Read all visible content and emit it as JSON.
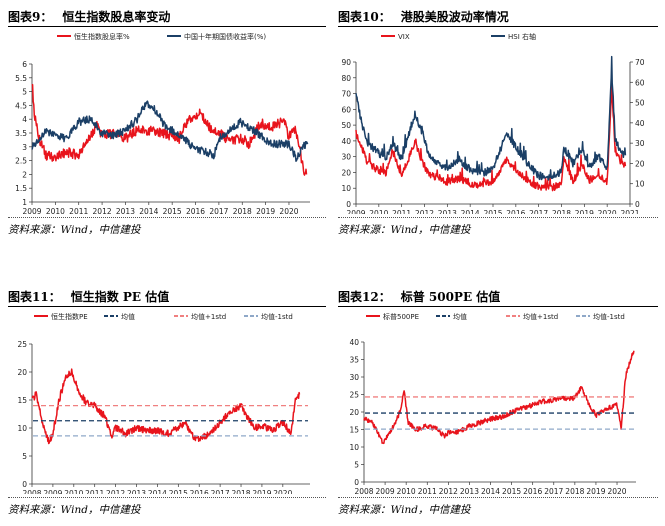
{
  "colors": {
    "red": "#e8141c",
    "navy": "#1b3f66",
    "pink": "#f08080",
    "lightblue": "#8fa8c8"
  },
  "source_text": "资料来源：Wind，中信建投",
  "panels": [
    {
      "fig_label": "图表9：",
      "title": "恒生指数股息率变动"
    },
    {
      "fig_label": "图表10：",
      "title": "港股美股波动率情况"
    },
    {
      "fig_label": "图表11：",
      "title": "恒生指数 PE 估值"
    },
    {
      "fig_label": "图表12：",
      "title": "标普 500PE 估值"
    }
  ],
  "chart_data": [
    {
      "type": "line",
      "title": "恒生指数股息率变动",
      "xlabels": [
        "2009",
        "2010",
        "2011",
        "2012",
        "2013",
        "2014",
        "2015",
        "2016",
        "2017",
        "2018",
        "2019",
        "2020"
      ],
      "xlim": [
        2009,
        2020.9
      ],
      "ylim": [
        1,
        6
      ],
      "yticks": [
        "1",
        "1.5",
        "2",
        "2.5",
        "3",
        "3.5",
        "4",
        "4.5",
        "5",
        "5.5",
        "6"
      ],
      "legend": "top",
      "series": [
        {
          "name": "恒生指数股息率%",
          "color": "red",
          "x": [
            2009,
            2009.1,
            2009.3,
            2009.6,
            2010,
            2010.5,
            2011,
            2011.3,
            2011.8,
            2012,
            2012.5,
            2013,
            2013.5,
            2014,
            2014.5,
            2015,
            2015.3,
            2015.7,
            2016,
            2016.2,
            2016.6,
            2017,
            2017.5,
            2018,
            2018.3,
            2018.8,
            2019,
            2019.5,
            2019.8,
            2020,
            2020.2,
            2020.4,
            2020.6,
            2020.75
          ],
          "y": [
            5.4,
            4.2,
            3.3,
            2.7,
            2.6,
            2.8,
            2.7,
            3.1,
            3.8,
            3.4,
            3.5,
            3.3,
            3.6,
            3.6,
            3.5,
            3.4,
            3.3,
            4.0,
            4.1,
            4.2,
            3.7,
            3.5,
            3.2,
            3.3,
            3.1,
            3.9,
            3.7,
            3.8,
            4.0,
            3.3,
            3.7,
            3.3,
            2.2,
            2.0
          ]
        },
        {
          "name": "中国十年期国债收益率(%)",
          "color": "navy",
          "x": [
            2009,
            2009.3,
            2009.6,
            2010,
            2010.5,
            2011,
            2011.5,
            2012,
            2012.5,
            2013,
            2013.5,
            2013.9,
            2014.3,
            2014.8,
            2015,
            2015.5,
            2016,
            2016.5,
            2016.8,
            2017,
            2017.5,
            2017.9,
            2018.3,
            2018.8,
            2019,
            2019.5,
            2020,
            2020.3,
            2020.6,
            2020.8
          ],
          "y": [
            3.0,
            3.2,
            3.6,
            3.4,
            3.3,
            3.9,
            4.0,
            3.5,
            3.4,
            3.6,
            4.0,
            4.6,
            4.3,
            3.6,
            3.6,
            3.3,
            2.9,
            2.8,
            2.7,
            3.3,
            3.6,
            3.9,
            3.7,
            3.4,
            3.2,
            3.1,
            3.1,
            2.6,
            3.0,
            3.1
          ]
        }
      ]
    },
    {
      "type": "line",
      "title": "港股美股波动率情况",
      "xlabels": [
        "2009",
        "2010",
        "2011",
        "2012",
        "2013",
        "2014",
        "2015",
        "2016",
        "2017",
        "2018",
        "2019",
        "2020",
        "2021"
      ],
      "xlim": [
        2009,
        2021
      ],
      "ylim": [
        0,
        90
      ],
      "yticks": [
        "0",
        "10",
        "20",
        "30",
        "40",
        "50",
        "60",
        "70",
        "80",
        "90"
      ],
      "y2lim": [
        0,
        70
      ],
      "y2ticks": [
        "0",
        "10",
        "20",
        "30",
        "40",
        "50",
        "60",
        "70"
      ],
      "legend": "top",
      "series": [
        {
          "name": "VIX",
          "color": "red",
          "axis": "left",
          "x": [
            2009,
            2009.2,
            2009.5,
            2009.8,
            2010.3,
            2010.6,
            2011,
            2011.6,
            2011.8,
            2012.2,
            2012.6,
            2013,
            2013.5,
            2014,
            2014.5,
            2015,
            2015.6,
            2016,
            2016.5,
            2017,
            2017.5,
            2018,
            2018.1,
            2018.5,
            2018.9,
            2019.2,
            2019.6,
            2020,
            2020.2,
            2020.35,
            2020.6,
            2020.8
          ],
          "y": [
            45,
            38,
            26,
            23,
            19,
            34,
            18,
            40,
            30,
            18,
            17,
            14,
            16,
            13,
            12,
            14,
            28,
            22,
            15,
            11,
            10,
            12,
            30,
            14,
            25,
            15,
            18,
            14,
            75,
            35,
            26,
            24
          ]
        },
        {
          "name": "HSI 右轴",
          "color": "navy",
          "axis": "right",
          "x": [
            2009,
            2009.2,
            2009.5,
            2009.8,
            2010.3,
            2010.6,
            2011,
            2011.6,
            2011.8,
            2012.2,
            2012.6,
            2013,
            2013.5,
            2014,
            2014.5,
            2015,
            2015.6,
            2016,
            2016.5,
            2017,
            2017.5,
            2018,
            2018.1,
            2018.5,
            2018.9,
            2019.2,
            2019.6,
            2020,
            2020.2,
            2020.35,
            2020.6,
            2020.8
          ],
          "y": [
            55,
            42,
            30,
            27,
            22,
            30,
            22,
            45,
            38,
            24,
            20,
            18,
            22,
            17,
            15,
            17,
            35,
            28,
            20,
            14,
            13,
            16,
            28,
            20,
            27,
            18,
            24,
            18,
            66,
            32,
            25,
            24
          ]
        }
      ]
    },
    {
      "type": "line",
      "title": "恒生指数 PE 估值",
      "xlabels": [
        "2008",
        "2009",
        "2010",
        "2011",
        "2012",
        "2013",
        "2014",
        "2015",
        "2016",
        "2017",
        "2018",
        "2019",
        "2020"
      ],
      "xlim": [
        2008,
        2021.3
      ],
      "ylim": [
        0,
        25
      ],
      "yticks": [
        "0",
        "5",
        "10",
        "15",
        "20",
        "25"
      ],
      "legend": "top",
      "series": [
        {
          "name": "恒生指数PE",
          "color": "red",
          "x": [
            2008,
            2008.2,
            2008.5,
            2008.8,
            2009,
            2009.3,
            2009.6,
            2009.9,
            2010.2,
            2010.5,
            2010.8,
            2011,
            2011.5,
            2011.8,
            2012,
            2012.5,
            2013,
            2013.5,
            2014,
            2014.5,
            2015,
            2015.3,
            2015.7,
            2016,
            2016.5,
            2017,
            2017.5,
            2018,
            2018.3,
            2018.7,
            2019,
            2019.5,
            2020,
            2020.4,
            2020.6,
            2020.8
          ],
          "y": [
            15,
            16,
            11,
            7.5,
            9,
            15,
            19,
            20,
            17,
            15,
            14,
            14,
            12,
            8.5,
            10,
            9,
            10,
            9.5,
            9.5,
            9,
            10,
            11,
            8.5,
            8,
            9,
            11,
            13,
            14,
            12,
            10,
            10.5,
            9.5,
            11,
            9,
            15,
            16
          ]
        },
        {
          "name": "均值",
          "color": "navy",
          "dash": true,
          "y": [
            11.3
          ]
        },
        {
          "name": "均值+1std",
          "color": "pink",
          "dash": true,
          "y": [
            14
          ]
        },
        {
          "name": "均值-1std",
          "color": "lightblue",
          "dash": true,
          "y": [
            8.6
          ]
        }
      ]
    },
    {
      "type": "line",
      "title": "标普 500PE 估值",
      "xlabels": [
        "2008",
        "2009",
        "2010",
        "2011",
        "2012",
        "2013",
        "2014",
        "2015",
        "2016",
        "2017",
        "2018",
        "2019",
        "2020"
      ],
      "xlim": [
        2008,
        2020.9
      ],
      "ylim": [
        0,
        40
      ],
      "yticks": [
        "0",
        "5",
        "10",
        "15",
        "20",
        "25",
        "30",
        "35",
        "40"
      ],
      "legend": "top",
      "series": [
        {
          "name": "标普500PE",
          "color": "red",
          "x": [
            2008,
            2008.3,
            2008.6,
            2008.9,
            2009.1,
            2009.4,
            2009.7,
            2009.9,
            2010.1,
            2010.5,
            2011,
            2011.5,
            2011.8,
            2012,
            2012.5,
            2013,
            2013.5,
            2014,
            2014.5,
            2015,
            2015.5,
            2016,
            2016.5,
            2017,
            2017.5,
            2018,
            2018.3,
            2018.7,
            2019,
            2019.5,
            2020,
            2020.2,
            2020.4,
            2020.6,
            2020.8
          ],
          "y": [
            18,
            17.5,
            15,
            11,
            13,
            16,
            20,
            26,
            17,
            15,
            16,
            15,
            13,
            14,
            14.5,
            16,
            17,
            18,
            18.5,
            20,
            21,
            22,
            23,
            23.5,
            24,
            24,
            27,
            22,
            19,
            21,
            22,
            15,
            30,
            34,
            37.5
          ]
        },
        {
          "name": "均值",
          "color": "navy",
          "dash": true,
          "y": [
            19.7
          ]
        },
        {
          "name": "均值+1std",
          "color": "pink",
          "dash": true,
          "y": [
            24.3
          ]
        },
        {
          "name": "均值-1std",
          "color": "lightblue",
          "dash": true,
          "y": [
            15.1
          ]
        }
      ]
    }
  ]
}
